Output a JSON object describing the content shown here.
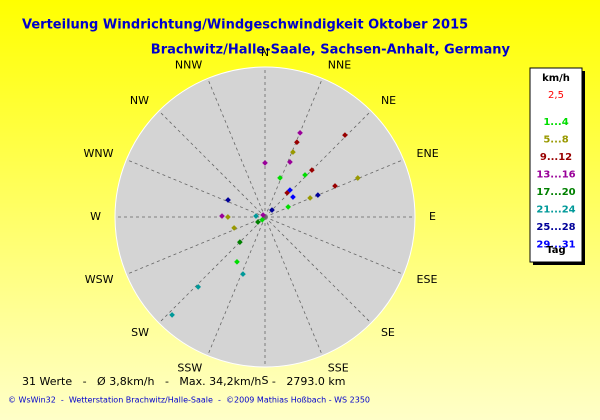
{
  "chart_data": {
    "type": "polar-scatter",
    "title": "Verteilung Windrichtung/Windgeschwindigkeit  Oktober 2015",
    "subtitle": "Brachwitz/Halle-Saale, Sachsen-Anhalt, Germany",
    "direction_labels": [
      "N",
      "NNE",
      "NE",
      "ENE",
      "E",
      "ESE",
      "SE",
      "SSE",
      "S",
      "SSW",
      "SW",
      "WSW",
      "W",
      "WNW",
      "NW",
      "NNW"
    ],
    "rlim": [
      0,
      38
    ],
    "legend_title": "km/h",
    "legend_note": "2,5",
    "legend_note_color": "#ff0000",
    "legend_footer": "Tag",
    "series": [
      {
        "name": "1...4",
        "color": "#00dd00",
        "x": [
          21,
          43.6,
          66.5,
          212,
          225
        ],
        "values": [
          10.6,
          14.7,
          6.4,
          13.4,
          1.0
        ]
      },
      {
        "name": "5...8",
        "color": "#999900",
        "x": [
          23.3,
          67.2,
          67.1,
          270,
          250.5
        ],
        "values": [
          17.9,
          25.5,
          12.4,
          9.4,
          8.3
        ]
      },
      {
        "name": "9...12",
        "color": "#990000",
        "x": [
          44.3,
          23.1,
          45,
          66.1,
          42.5
        ],
        "values": [
          29.0,
          20.6,
          16.8,
          19.4,
          8.3
        ]
      },
      {
        "name": "13...16",
        "color": "#990099",
        "x": [
          22.6,
          24.4,
          0,
          271.3,
          315
        ],
        "values": [
          23.1,
          15.3,
          13.7,
          10.9,
          0.7
        ]
      },
      {
        "name": "17...20",
        "color": "#008000",
        "x": [
          225,
          234.5
        ],
        "values": [
          9.0,
          2.2
        ]
      },
      {
        "name": "21...24",
        "color": "#009999",
        "x": [
          201.1,
          223.7,
          223.5,
          276
        ],
        "values": [
          15.5,
          24.5,
          34.2,
          2.3
        ]
      },
      {
        "name": "25...28",
        "color": "#000099",
        "x": [
          67.5,
          45,
          294.7
        ],
        "values": [
          14.5,
          2.5,
          10.3
        ]
      },
      {
        "name": "29...31",
        "color": "#0000ff",
        "x": [
          42.8,
          54.5
        ],
        "values": [
          9.3,
          8.7
        ]
      }
    ],
    "footer": "31 Werte   -   Ø 3,8km/h   -   Max. 34,2km/h   -   2793.0 km",
    "credit": "© WsWin32  -  Wetterstation Brachwitz/Halle-Saale  -  ©2009 Mathias Hoßbach - WS 2350"
  }
}
